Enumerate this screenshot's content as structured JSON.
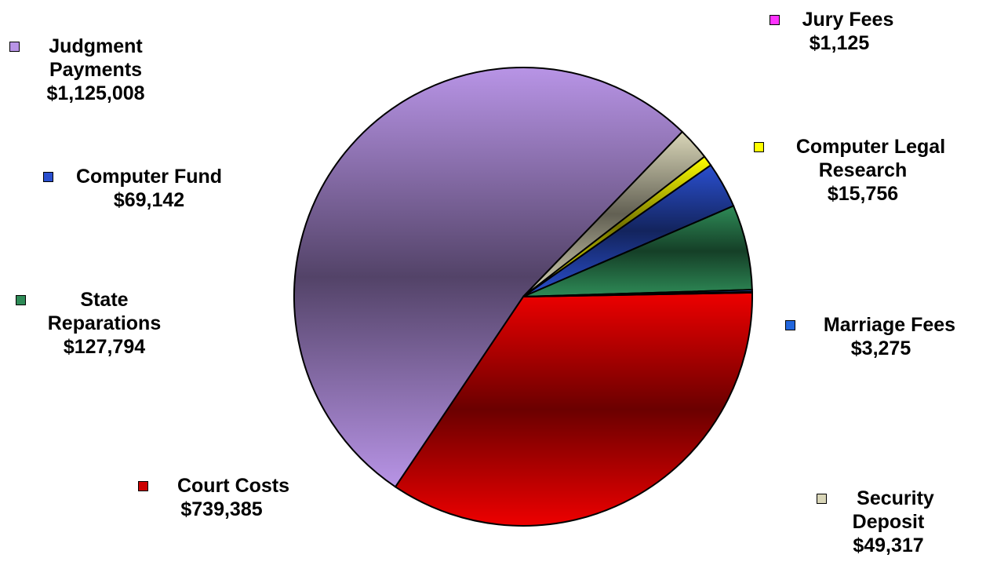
{
  "chart_data": {
    "type": "pie",
    "slices": [
      {
        "key": "court_costs",
        "label_lines": [
          "Court Costs"
        ],
        "value_label": "$739,385",
        "value": 739385,
        "color": "#ee0000"
      },
      {
        "key": "judgment",
        "label_lines": [
          "Judgment",
          "Payments"
        ],
        "value_label": "$1,125,008",
        "value": 1125008,
        "color": "#b894e6"
      },
      {
        "key": "security",
        "label_lines": [
          "Security",
          "Deposit"
        ],
        "value_label": "$49,317",
        "value": 49317,
        "color": "#d9d6b8"
      },
      {
        "key": "cl_research",
        "label_lines": [
          "Computer Legal",
          "Research"
        ],
        "value_label": "$15,756",
        "value": 15756,
        "color": "#ffff00"
      },
      {
        "key": "computer_fund",
        "label_lines": [
          "Computer Fund"
        ],
        "value_label": "$69,142",
        "value": 69142,
        "color": "#2a4fcf"
      },
      {
        "key": "state_reparations",
        "label_lines": [
          "State",
          "Reparations"
        ],
        "value_label": "$127,794",
        "value": 127794,
        "color": "#2e8b57"
      },
      {
        "key": "marriage_fees",
        "label_lines": [
          "Marriage Fees"
        ],
        "value_label": "$3,275",
        "value": 3275,
        "color": "#2266dd"
      },
      {
        "key": "jury_fees",
        "label_lines": [
          "Jury Fees"
        ],
        "value_label": "$1,125",
        "value": 1125,
        "color": "#ff00ff"
      }
    ]
  }
}
